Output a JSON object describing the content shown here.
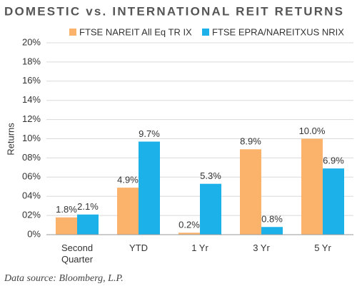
{
  "chart_data": {
    "type": "bar",
    "title": "DOMESTIC vs. INTERNATIONAL REIT RETURNS",
    "y_label": "Returns",
    "source": "Data source: Bloomberg, L.P.",
    "categories": [
      "Second Quarter",
      "YTD",
      "1 Yr",
      "3 Yr",
      "5 Yr"
    ],
    "series": [
      {
        "name": "FTSE NAREIT All Eq TR IX",
        "color": "#fbb36b",
        "values": [
          1.8,
          4.9,
          0.2,
          8.9,
          10.0
        ],
        "value_labels": [
          "1.8%",
          "4.9%",
          "0.2%",
          "8.9%",
          "10.0%"
        ]
      },
      {
        "name": "FTSE EPRA/NAREITXUS NRIX",
        "color": "#1cb1e8",
        "values": [
          2.1,
          9.7,
          5.3,
          0.8,
          6.9
        ],
        "value_labels": [
          "2.1%",
          "9.7%",
          "5.3%",
          "0.8%",
          "6.9%"
        ]
      }
    ],
    "ylim": [
      0,
      20
    ],
    "yticks": [
      {
        "value": 0,
        "label": "0%"
      },
      {
        "value": 2,
        "label": "02%"
      },
      {
        "value": 4,
        "label": "04%"
      },
      {
        "value": 6,
        "label": "06%"
      },
      {
        "value": 8,
        "label": "08%"
      },
      {
        "value": 10,
        "label": "10%"
      },
      {
        "value": 12,
        "label": "12%"
      },
      {
        "value": 14,
        "label": "14%"
      },
      {
        "value": 16,
        "label": "16%"
      },
      {
        "value": 18,
        "label": "18%"
      },
      {
        "value": 20,
        "label": "20%"
      }
    ],
    "grid": true
  }
}
